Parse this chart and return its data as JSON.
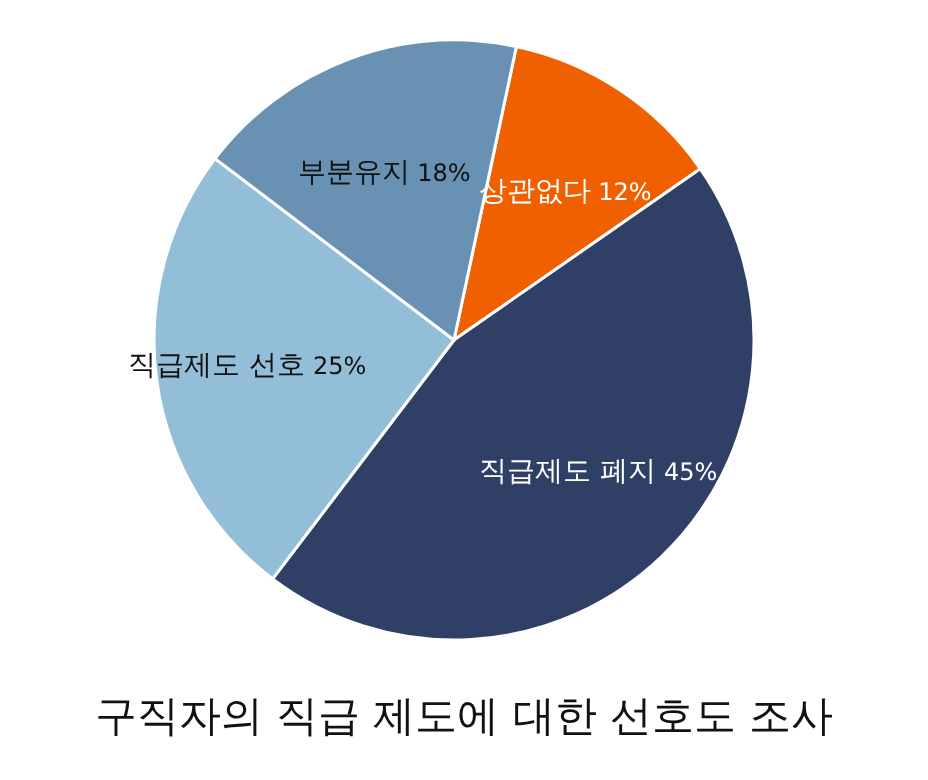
{
  "chart_data": {
    "type": "pie",
    "title": "구직자의 직급 제도에 대한 선호도 조사",
    "categories": [
      "상관없다",
      "직급제도 폐지",
      "직급제도 선호",
      "부분유지"
    ],
    "values": [
      12,
      45,
      25,
      18
    ],
    "value_labels": [
      "12%",
      "45%",
      "25%",
      "18%"
    ],
    "colors": [
      "#f06000",
      "#2f3f66",
      "#93bed8",
      "#6891b3"
    ],
    "legend": false
  }
}
